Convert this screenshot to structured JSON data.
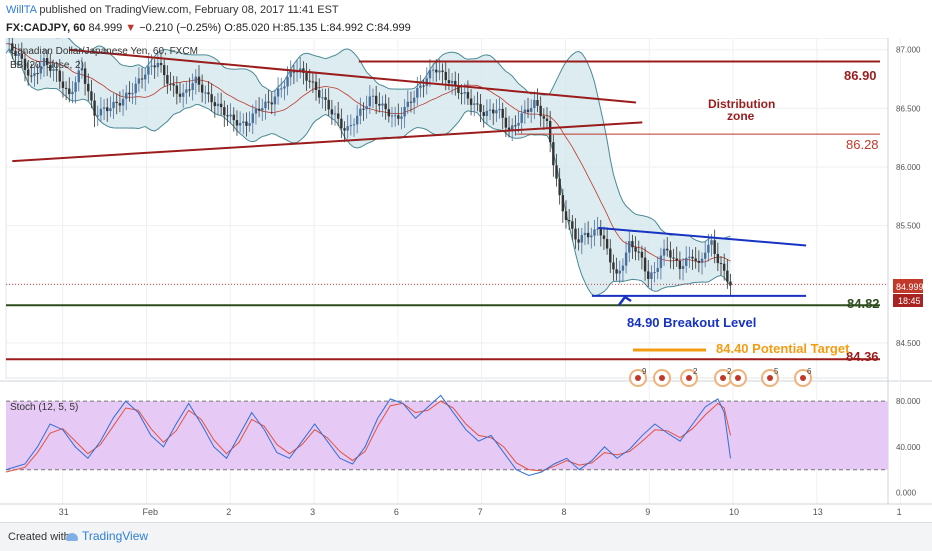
{
  "header": {
    "author": "WillTA",
    "published": "published on TradingView.com, February 08, 2017 11:41 EST",
    "symbol": "FX:CADJPY, 60",
    "price": "84.999",
    "arrow": "▼",
    "change": "−0.210 (−0.25%)",
    "ohlc": "O:85.020 H:85.135 L:84.992 C:84.999"
  },
  "legend": {
    "instrument": "Canadian Dollar/Japanese Yen, 60, FXCM",
    "bb": "BB (20, close, 2)",
    "stoch": "Stoch (12, 5, 5)"
  },
  "annotations": {
    "level_8690": "86.90",
    "level_8628": "86.28",
    "level_8482": "84.82",
    "level_8436": "84.36",
    "distribution": "Distribution",
    "zone": "zone",
    "breakout": "84.90 Breakout Level",
    "target": "84.40 Potential Target",
    "price_tag": "84.999",
    "time_tag": "18:45"
  },
  "event_icons": [
    {
      "count": "9"
    },
    {
      "count": ""
    },
    {
      "count": "2"
    },
    {
      "count": "2"
    },
    {
      "count": ""
    },
    {
      "count": "5"
    },
    {
      "count": "6"
    }
  ],
  "footer": {
    "created": "Created with",
    "brand": "TradingView"
  },
  "colors": {
    "up": "#4a6f9c",
    "down": "#333333",
    "bb_fill": "#cfe4ea",
    "bb_line": "#4a8a95",
    "dark_red": "#9b1c1c",
    "green_line": "#2e4d1f",
    "blue": "#1733c2",
    "orange": "#f39c12",
    "stoch_fill": "#e7c9f5",
    "stoch_k": "#2f6fd6",
    "stoch_d": "#e0533f"
  },
  "chart_data": {
    "type": "candlestick",
    "price_axis": {
      "min": 84.2,
      "max": 87.1,
      "ticks": [
        "87.000",
        "86.500",
        "86.000",
        "85.500",
        "85.000",
        "84.500"
      ]
    },
    "stoch_axis": {
      "min": -10,
      "max": 95,
      "ticks": [
        "80.000",
        "40.000",
        "0.000"
      ],
      "bands": [
        20,
        80
      ]
    },
    "x_ticks": [
      "31",
      "Feb",
      "2",
      "3",
      "6",
      "7",
      "8",
      "9",
      "10",
      "13",
      "1"
    ],
    "price_path": [
      [
        0,
        87.05
      ],
      [
        2,
        86.95
      ],
      [
        4,
        86.75
      ],
      [
        6,
        86.9
      ],
      [
        8,
        86.8
      ],
      [
        10,
        86.6
      ],
      [
        12,
        86.85
      ],
      [
        14,
        86.45
      ],
      [
        16,
        86.5
      ],
      [
        18,
        86.55
      ],
      [
        20,
        86.65
      ],
      [
        22,
        86.8
      ],
      [
        24,
        86.9
      ],
      [
        26,
        86.7
      ],
      [
        28,
        86.6
      ],
      [
        30,
        86.75
      ],
      [
        32,
        86.6
      ],
      [
        34,
        86.5
      ],
      [
        36,
        86.4
      ],
      [
        38,
        86.35
      ],
      [
        40,
        86.5
      ],
      [
        42,
        86.55
      ],
      [
        44,
        86.7
      ],
      [
        46,
        86.85
      ],
      [
        48,
        86.75
      ],
      [
        50,
        86.6
      ],
      [
        52,
        86.45
      ],
      [
        54,
        86.3
      ],
      [
        56,
        86.45
      ],
      [
        58,
        86.6
      ],
      [
        60,
        86.5
      ],
      [
        62,
        86.4
      ],
      [
        64,
        86.55
      ],
      [
        66,
        86.7
      ],
      [
        68,
        86.85
      ],
      [
        70,
        86.75
      ],
      [
        72,
        86.65
      ],
      [
        74,
        86.55
      ],
      [
        76,
        86.45
      ],
      [
        78,
        86.5
      ],
      [
        80,
        86.3
      ],
      [
        82,
        86.45
      ],
      [
        84,
        86.55
      ],
      [
        86,
        86.35
      ],
      [
        87,
        86.0
      ],
      [
        88,
        85.7
      ],
      [
        89,
        85.55
      ],
      [
        90,
        85.45
      ],
      [
        91,
        85.35
      ],
      [
        92,
        85.45
      ],
      [
        93,
        85.4
      ],
      [
        94,
        85.5
      ],
      [
        95,
        85.35
      ],
      [
        96,
        85.2
      ],
      [
        97,
        85.05
      ],
      [
        98,
        85.2
      ],
      [
        99,
        85.35
      ],
      [
        100,
        85.3
      ],
      [
        101,
        85.2
      ],
      [
        102,
        85.05
      ],
      [
        103,
        85.1
      ],
      [
        104,
        85.25
      ],
      [
        105,
        85.3
      ],
      [
        106,
        85.2
      ],
      [
        107,
        85.15
      ],
      [
        108,
        85.2
      ],
      [
        109,
        85.25
      ],
      [
        110,
        85.15
      ],
      [
        111,
        85.3
      ],
      [
        112,
        85.35
      ],
      [
        113,
        85.2
      ],
      [
        114,
        85.1
      ],
      [
        115,
        84.999
      ]
    ],
    "stoch_k": [
      [
        0,
        20
      ],
      [
        3,
        25
      ],
      [
        5,
        40
      ],
      [
        7,
        60
      ],
      [
        9,
        55
      ],
      [
        11,
        40
      ],
      [
        13,
        30
      ],
      [
        15,
        45
      ],
      [
        17,
        65
      ],
      [
        19,
        80
      ],
      [
        21,
        70
      ],
      [
        23,
        50
      ],
      [
        25,
        40
      ],
      [
        27,
        60
      ],
      [
        29,
        78
      ],
      [
        31,
        60
      ],
      [
        33,
        40
      ],
      [
        35,
        30
      ],
      [
        37,
        50
      ],
      [
        39,
        70
      ],
      [
        41,
        55
      ],
      [
        43,
        35
      ],
      [
        45,
        30
      ],
      [
        47,
        45
      ],
      [
        49,
        60
      ],
      [
        51,
        45
      ],
      [
        53,
        30
      ],
      [
        55,
        25
      ],
      [
        57,
        40
      ],
      [
        59,
        65
      ],
      [
        61,
        82
      ],
      [
        63,
        78
      ],
      [
        65,
        65
      ],
      [
        67,
        75
      ],
      [
        69,
        85
      ],
      [
        71,
        70
      ],
      [
        73,
        55
      ],
      [
        75,
        45
      ],
      [
        77,
        50
      ],
      [
        79,
        35
      ],
      [
        81,
        20
      ],
      [
        83,
        15
      ],
      [
        85,
        18
      ],
      [
        87,
        25
      ],
      [
        89,
        30
      ],
      [
        91,
        20
      ],
      [
        93,
        28
      ],
      [
        95,
        40
      ],
      [
        97,
        30
      ],
      [
        99,
        38
      ],
      [
        101,
        50
      ],
      [
        103,
        60
      ],
      [
        105,
        52
      ],
      [
        107,
        45
      ],
      [
        109,
        60
      ],
      [
        111,
        75
      ],
      [
        113,
        82
      ],
      [
        114,
        70
      ],
      [
        115,
        30
      ]
    ],
    "stoch_d": [
      [
        0,
        18
      ],
      [
        3,
        22
      ],
      [
        5,
        35
      ],
      [
        7,
        52
      ],
      [
        9,
        56
      ],
      [
        11,
        45
      ],
      [
        13,
        34
      ],
      [
        15,
        42
      ],
      [
        17,
        58
      ],
      [
        19,
        74
      ],
      [
        21,
        72
      ],
      [
        23,
        56
      ],
      [
        25,
        44
      ],
      [
        27,
        54
      ],
      [
        29,
        72
      ],
      [
        31,
        64
      ],
      [
        33,
        46
      ],
      [
        35,
        34
      ],
      [
        37,
        44
      ],
      [
        39,
        64
      ],
      [
        41,
        58
      ],
      [
        43,
        42
      ],
      [
        45,
        34
      ],
      [
        47,
        42
      ],
      [
        49,
        55
      ],
      [
        51,
        48
      ],
      [
        53,
        36
      ],
      [
        55,
        28
      ],
      [
        57,
        36
      ],
      [
        59,
        58
      ],
      [
        61,
        76
      ],
      [
        63,
        78
      ],
      [
        65,
        70
      ],
      [
        67,
        72
      ],
      [
        69,
        80
      ],
      [
        71,
        74
      ],
      [
        73,
        60
      ],
      [
        75,
        50
      ],
      [
        77,
        48
      ],
      [
        79,
        40
      ],
      [
        81,
        26
      ],
      [
        83,
        20
      ],
      [
        85,
        19
      ],
      [
        87,
        23
      ],
      [
        89,
        28
      ],
      [
        91,
        24
      ],
      [
        93,
        26
      ],
      [
        95,
        35
      ],
      [
        97,
        33
      ],
      [
        99,
        36
      ],
      [
        101,
        45
      ],
      [
        103,
        55
      ],
      [
        105,
        54
      ],
      [
        107,
        48
      ],
      [
        109,
        56
      ],
      [
        111,
        68
      ],
      [
        113,
        78
      ],
      [
        114,
        74
      ],
      [
        115,
        50
      ]
    ],
    "lines": [
      {
        "name": "upper-trendline",
        "from": [
          10,
          87.0
        ],
        "to": [
          100,
          86.55
        ]
      },
      {
        "name": "lower-trendline",
        "from": [
          1,
          86.05
        ],
        "to": [
          101,
          86.38
        ]
      },
      {
        "name": "resistance-8690",
        "from": [
          56,
          86.9
        ],
        "to": [
          140,
          86.9
        ]
      },
      {
        "name": "level-8628",
        "from": [
          81,
          86.28
        ],
        "to": [
          140,
          86.28
        ]
      },
      {
        "name": "level-8482",
        "from": [
          0,
          84.82
        ],
        "to": [
          140,
          84.82
        ]
      },
      {
        "name": "level-8436",
        "from": [
          0,
          84.36
        ],
        "to": [
          140,
          84.36
        ]
      },
      {
        "name": "channel-top",
        "from": [
          94,
          85.48
        ],
        "to": [
          127,
          85.33
        ]
      },
      {
        "name": "channel-bottom",
        "from": [
          93,
          84.9
        ],
        "to": [
          127,
          84.9
        ]
      }
    ]
  }
}
